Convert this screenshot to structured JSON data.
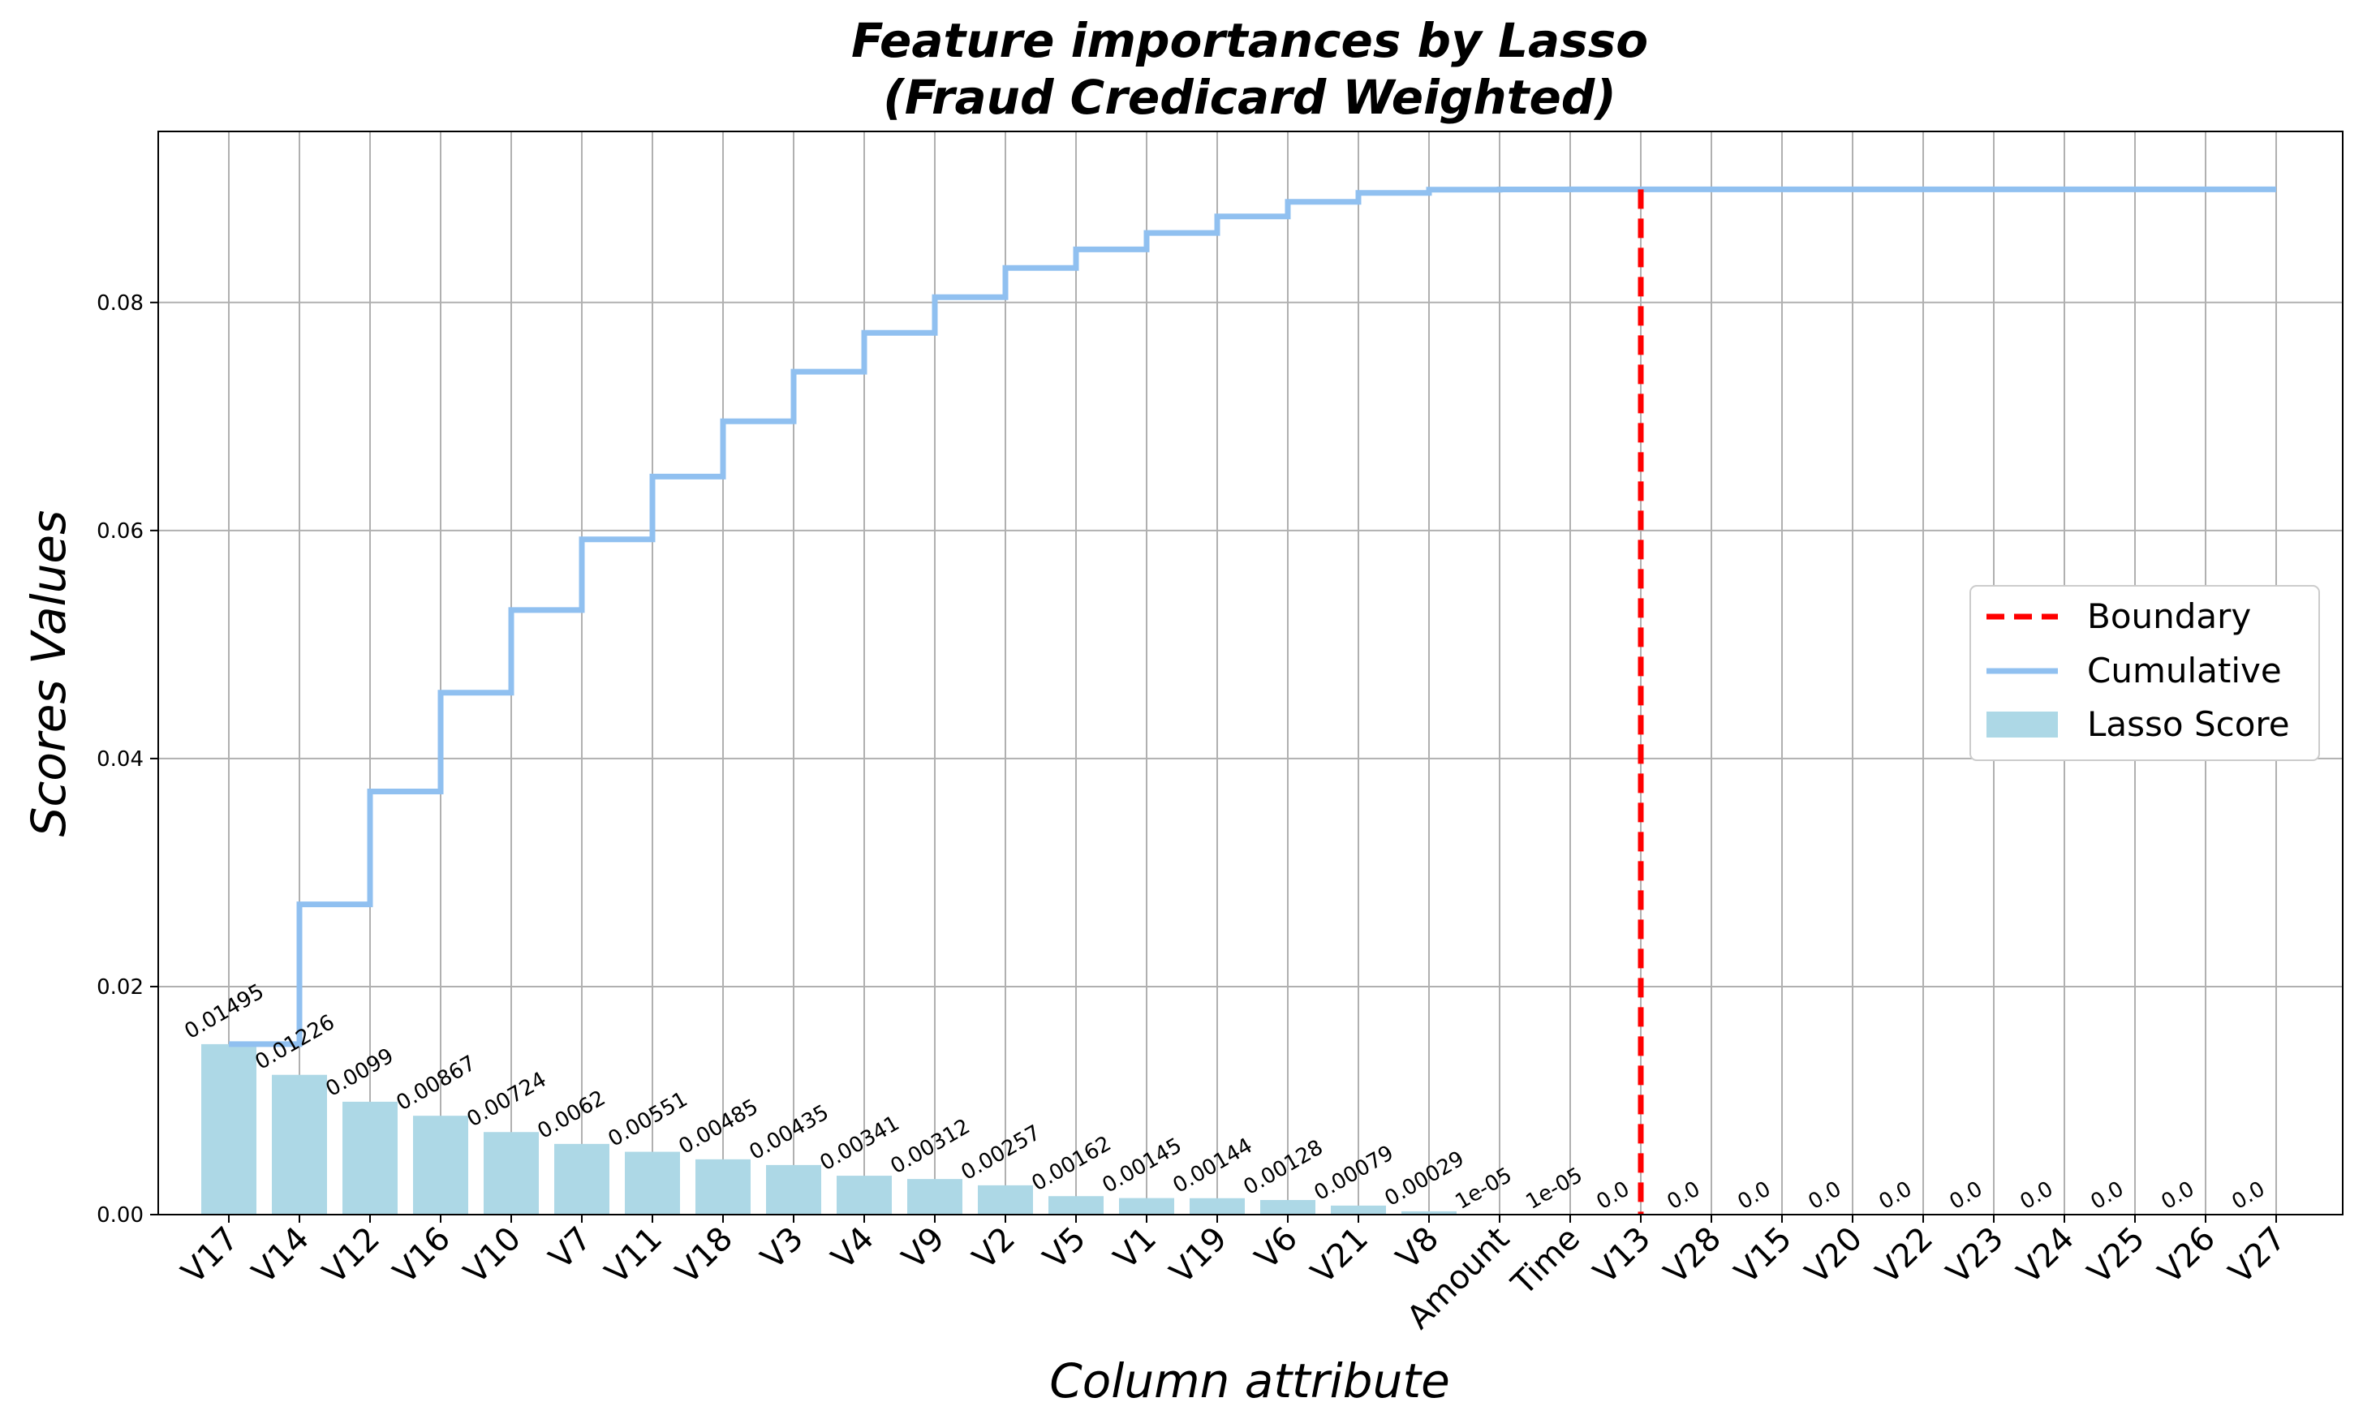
{
  "chart_data": {
    "type": "bar",
    "title_line1": "Feature importances by Lasso",
    "title_line2": "(Fraud Credicard Weighted)",
    "xlabel": "Column attribute",
    "ylabel": "Scores Values",
    "ylim": [
      0,
      0.095
    ],
    "yticks": [
      "0.00",
      "0.02",
      "0.04",
      "0.06",
      "0.08"
    ],
    "ytick_values": [
      0,
      0.02,
      0.04,
      0.06,
      0.08
    ],
    "grid": true,
    "legend_position": "center-right",
    "categories": [
      "V17",
      "V14",
      "V12",
      "V16",
      "V10",
      "V7",
      "V11",
      "V18",
      "V3",
      "V4",
      "V9",
      "V2",
      "V5",
      "V1",
      "V19",
      "V6",
      "V21",
      "V8",
      "Amount",
      "Time",
      "V13",
      "V28",
      "V15",
      "V20",
      "V22",
      "V23",
      "V24",
      "V25",
      "V26",
      "V27"
    ],
    "values": [
      0.01495,
      0.01226,
      0.0099,
      0.00867,
      0.00724,
      0.0062,
      0.00551,
      0.00485,
      0.00435,
      0.00341,
      0.00312,
      0.00257,
      0.00162,
      0.00145,
      0.00144,
      0.00128,
      0.00079,
      0.00029,
      1e-05,
      1e-05,
      0,
      0,
      0,
      0,
      0,
      0,
      0,
      0,
      0,
      0
    ],
    "value_labels": [
      "0.01495",
      "0.01226",
      "0.0099",
      "0.00867",
      "0.00724",
      "0.0062",
      "0.00551",
      "0.00485",
      "0.00435",
      "0.00341",
      "0.00312",
      "0.00257",
      "0.00162",
      "0.00145",
      "0.00144",
      "0.00128",
      "0.00079",
      "0.00029",
      "1e-05",
      "1e-05",
      "0.0",
      "0.0",
      "0.0",
      "0.0",
      "0.0",
      "0.0",
      "0.0",
      "0.0",
      "0.0",
      "0.0"
    ],
    "boundary_category": "V13",
    "series": [
      {
        "name": "Lasso Score",
        "kind": "bar",
        "color": "#add8e6"
      },
      {
        "name": "Cumulative",
        "kind": "step-line",
        "color": "#90c0f0"
      },
      {
        "name": "Boundary",
        "kind": "dashed-vline",
        "color": "#ff0000"
      }
    ]
  }
}
